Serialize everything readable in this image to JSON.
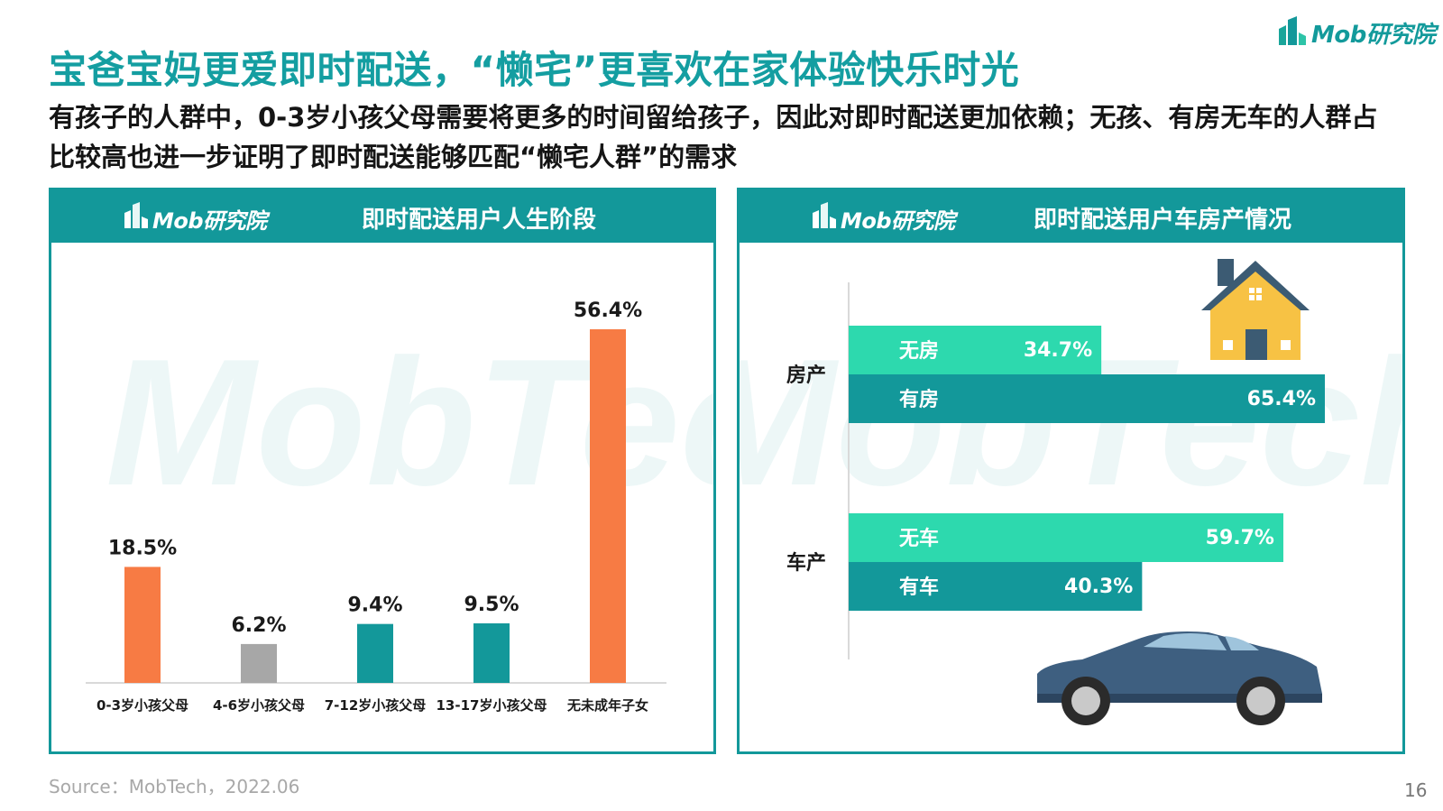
{
  "brand": {
    "logo_text": "Mob研究院",
    "watermark_text": "MobTech袤博",
    "accent_color": "#13989a",
    "orange_color": "#f77b44",
    "gray_color": "#a7a7a7",
    "mint_color": "#2dd9ae"
  },
  "title": "宝爸宝妈更爱即时配送，“懒宅”更喜欢在家体验快乐时光",
  "subtitle": "有孩子的人群中，0-3岁小孩父母需要将更多的时间留给孩子，因此对即时配送更加依赖；无孩、有房无车的人群占比较高也进一步证明了即时配送能够匹配“懒宅人群”的需求",
  "left_panel": {
    "title": "即时配送用户人生阶段"
  },
  "right_panel": {
    "title": "即时配送用户车房产情况"
  },
  "chart_data": [
    {
      "type": "bar",
      "title": "即时配送用户人生阶段",
      "categories": [
        "0-3岁小孩父母",
        "4-6岁小孩父母",
        "7-12岁小孩父母",
        "13-17岁小孩父母",
        "无未成年子女"
      ],
      "values": [
        18.5,
        6.2,
        9.4,
        9.5,
        56.4
      ],
      "value_labels": [
        "18.5%",
        "6.2%",
        "9.4%",
        "9.5%",
        "56.4%"
      ],
      "colors": [
        "#f77b44",
        "#a7a7a7",
        "#13989a",
        "#13989a",
        "#f77b44"
      ],
      "ylim": [
        0,
        60
      ],
      "grid": false
    },
    {
      "type": "bar",
      "orientation": "horizontal",
      "title": "即时配送用户车房产情况",
      "groups": [
        {
          "name": "房产",
          "bars": [
            {
              "label": "无房",
              "value": 34.7,
              "value_label": "34.7%",
              "color": "#2dd9ae"
            },
            {
              "label": "有房",
              "value": 65.4,
              "value_label": "65.4%",
              "color": "#13989a"
            }
          ]
        },
        {
          "name": "车产",
          "bars": [
            {
              "label": "无车",
              "value": 59.7,
              "value_label": "59.7%",
              "color": "#2dd9ae"
            },
            {
              "label": "有车",
              "value": 40.3,
              "value_label": "40.3%",
              "color": "#13989a"
            }
          ]
        }
      ],
      "xlim": [
        0,
        65.4
      ],
      "grid": false
    }
  ],
  "footer": {
    "source": "Source：MobTech，2022.06",
    "page_number": "16"
  }
}
